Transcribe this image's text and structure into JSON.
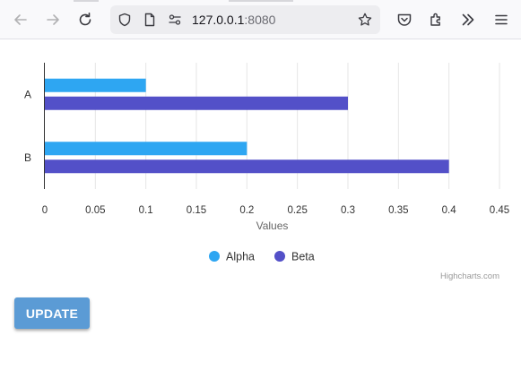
{
  "browser": {
    "url_host": "127.0.0.1",
    "url_port": ":8080"
  },
  "page": {
    "update_label": "UPDATE",
    "credits": "Highcharts.com"
  },
  "colors": {
    "alpha": "#2ea6f2",
    "beta": "#5350c8",
    "gridline": "#e6e6e6",
    "axis": "#333333",
    "button": "#5b9bd5"
  },
  "chart_data": {
    "type": "bar",
    "orientation": "horizontal",
    "categories": [
      "A",
      "B"
    ],
    "series": [
      {
        "name": "Alpha",
        "values": [
          0.1,
          0.2
        ],
        "color": "#2ea6f2"
      },
      {
        "name": "Beta",
        "values": [
          0.3,
          0.4
        ],
        "color": "#5350c8"
      }
    ],
    "xlabel": "",
    "ylabel": "Values",
    "value_range": [
      0,
      0.45
    ],
    "ticks": [
      "0",
      "0.05",
      "0.1",
      "0.15",
      "0.2",
      "0.25",
      "0.3",
      "0.35",
      "0.4",
      "0.45"
    ],
    "grid": true,
    "legend_placement": "bottom-center"
  }
}
